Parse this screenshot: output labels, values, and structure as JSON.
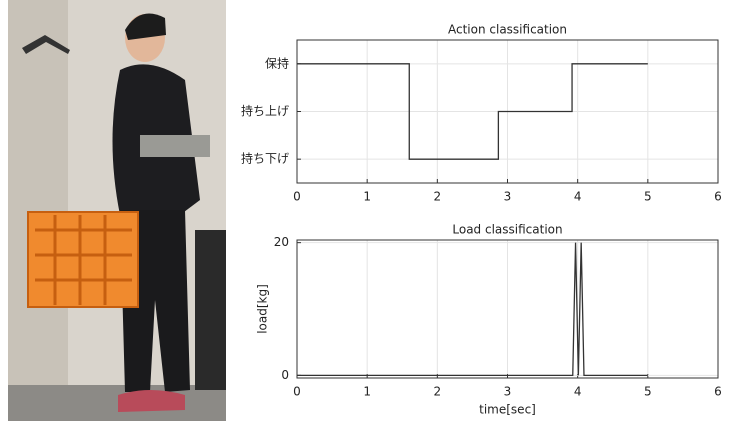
{
  "chart_data": [
    {
      "type": "line",
      "title": "Action classification",
      "x": [
        0,
        1.6,
        1.6,
        2.87,
        2.87,
        3.92,
        3.92,
        5
      ],
      "values": [
        3,
        3,
        1,
        1,
        2,
        2,
        3,
        3
      ],
      "color": "#333333",
      "xlim": [
        0,
        6
      ],
      "xticks": [
        0,
        1,
        2,
        3,
        4,
        5,
        6
      ],
      "ylim": [
        0.5,
        3.5
      ],
      "yticks": [
        {
          "value": 1,
          "label": "持ち下げ"
        },
        {
          "value": 2,
          "label": "持ち上げ"
        },
        {
          "value": 3,
          "label": "保持"
        }
      ],
      "grid": true
    },
    {
      "type": "line",
      "title": "Load classification",
      "x": [
        0,
        3.93,
        3.97,
        4.01,
        4.05,
        4.09,
        5
      ],
      "values": [
        0,
        0,
        20,
        0,
        20,
        0,
        0
      ],
      "color": "#333333",
      "xlim": [
        0,
        6
      ],
      "xticks": [
        0,
        1,
        2,
        3,
        4,
        5,
        6
      ],
      "ylim": [
        -0.4,
        20.4
      ],
      "yticks": [
        0,
        20
      ],
      "xlabel": "time[sec]",
      "ylabel": "load[kg]",
      "grid": true
    }
  ]
}
